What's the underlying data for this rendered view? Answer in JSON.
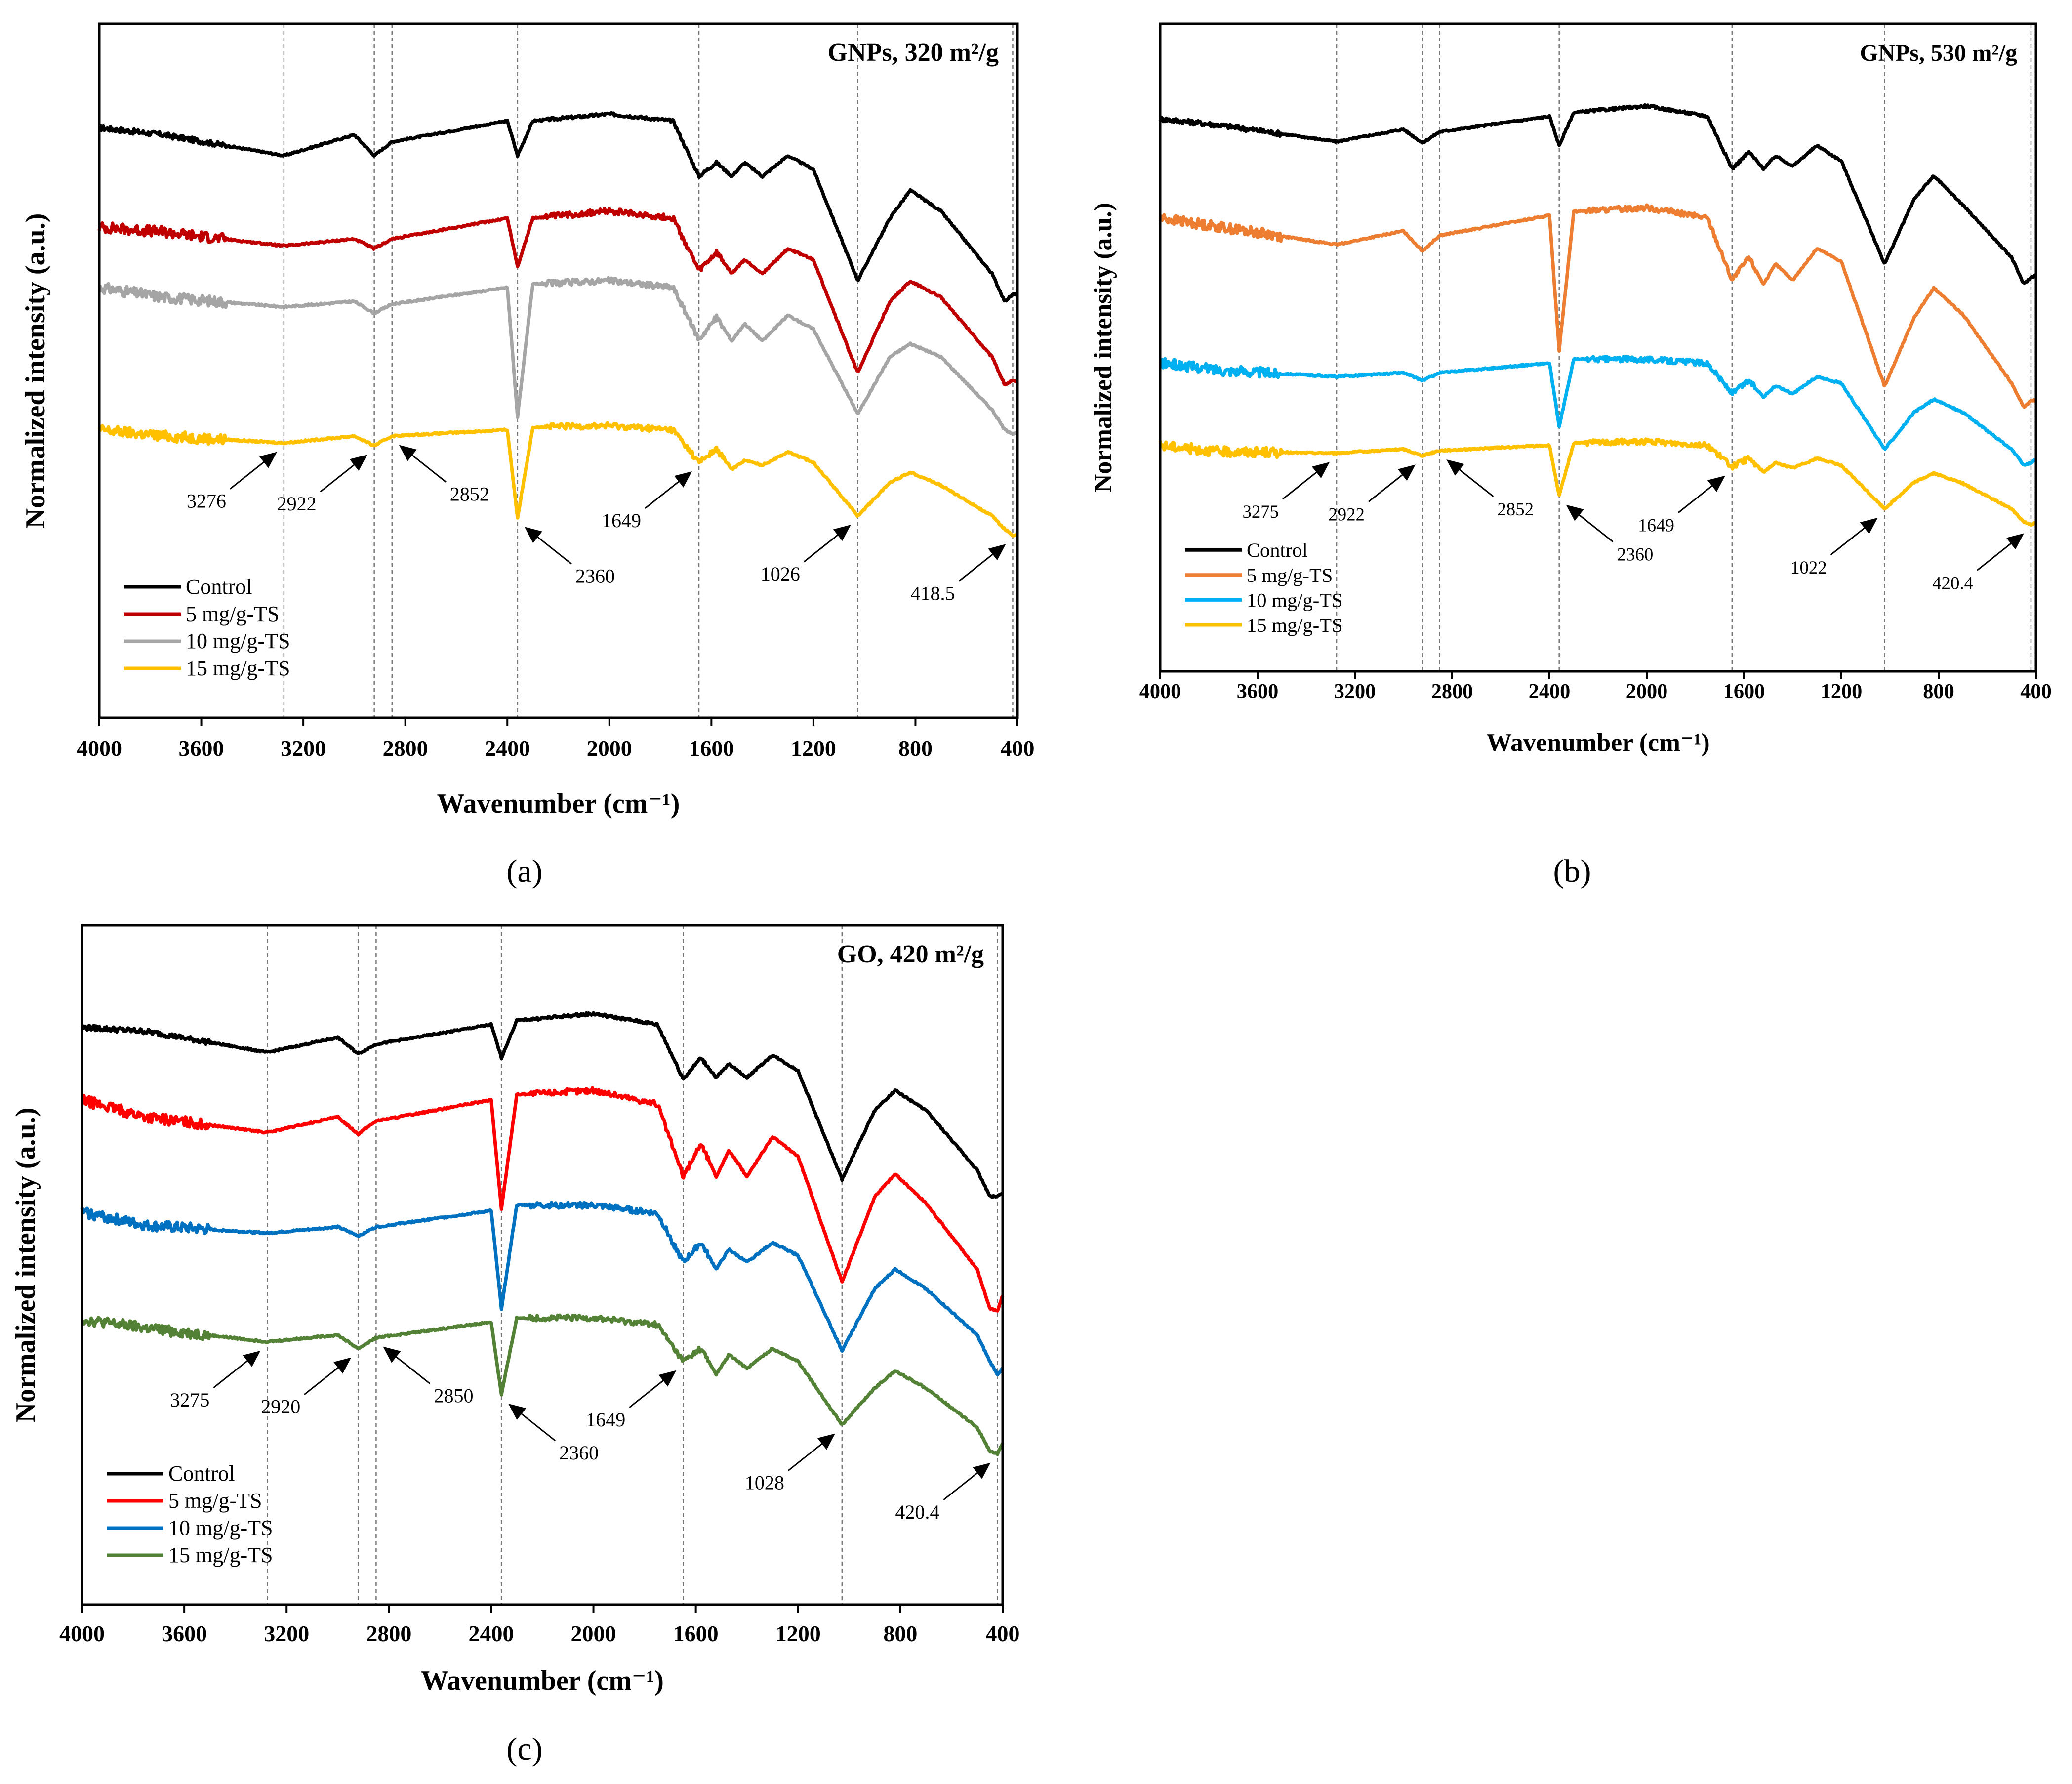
{
  "chart_data": [
    {
      "id": "a",
      "type": "line",
      "panel_label": "(a)",
      "title": "GNPs, 320 m²/g",
      "xlabel": "Wavenumber (cm⁻¹)",
      "ylabel": "Normalized intensity (a.u.)",
      "xlim": [
        4000,
        400
      ],
      "ylim": [
        0,
        100
      ],
      "xticks": [
        4000,
        3600,
        3200,
        2800,
        2400,
        2000,
        1600,
        1200,
        800,
        400
      ],
      "x": [
        4000,
        3750,
        3276,
        3000,
        2922,
        2852,
        2400,
        2360,
        2300,
        2000,
        1750,
        1649,
        1580,
        1520,
        1470,
        1400,
        1300,
        1200,
        1026,
        900,
        820,
        700,
        500,
        450,
        418,
        400
      ],
      "series": [
        {
          "name": "Control",
          "color": "#000000",
          "y": [
            85,
            84,
            81,
            84,
            81,
            83,
            86,
            81,
            86,
            87,
            86,
            78,
            80,
            78,
            80,
            78,
            81,
            79,
            63,
            72,
            76,
            73,
            64,
            60,
            61,
            61
          ]
        },
        {
          "name": "5 mg/g-TS",
          "color": "#C00000",
          "y": [
            70.7,
            70,
            68,
            69,
            67.6,
            69,
            72,
            65,
            72,
            73,
            72,
            64.4,
            67,
            64,
            66,
            64,
            67.6,
            66,
            49.7,
            60,
            62.9,
            60.6,
            52,
            48,
            48.6,
            48.2
          ]
        },
        {
          "name": "10 mg/g-TS",
          "color": "#A5A5A5",
          "y": [
            62,
            60.6,
            59.2,
            60,
            58.3,
            59.6,
            62,
            43.4,
            62.5,
            63,
            62,
            54.5,
            57.7,
            54.3,
            56.8,
            54.3,
            58,
            56,
            43.8,
            52,
            53.9,
            52,
            44.4,
            41.5,
            41,
            41
          ]
        },
        {
          "name": "15 mg/g-TS",
          "color": "#FFC000",
          "y": [
            41.5,
            40.6,
            39.6,
            40.6,
            39.2,
            40.6,
            41.5,
            28.8,
            41.9,
            42.1,
            41.5,
            36.8,
            38.7,
            35.8,
            37.1,
            36.4,
            38.3,
            36.8,
            29.1,
            33.9,
            35.4,
            33.5,
            29.1,
            27.2,
            26.3,
            26.3
          ]
        }
      ],
      "annotations": [
        {
          "text": "3276",
          "wavenumber": 3276
        },
        {
          "text": "2922",
          "wavenumber": 2922
        },
        {
          "text": "2852",
          "wavenumber": 2852
        },
        {
          "text": "2360",
          "wavenumber": 2360
        },
        {
          "text": "1649",
          "wavenumber": 1649
        },
        {
          "text": "1026",
          "wavenumber": 1026
        },
        {
          "text": "418.5",
          "wavenumber": 418.5
        }
      ],
      "legend_position": "bottom-left",
      "grid": false
    },
    {
      "id": "b",
      "type": "line",
      "panel_label": "(b)",
      "title": "GNPs, 530 m²/g",
      "xlabel": "Wavenumber (cm⁻¹)",
      "ylabel": "Normalized intensity (a.u.)",
      "xlim": [
        4000,
        400
      ],
      "ylim": [
        0,
        100
      ],
      "xticks": [
        4000,
        3600,
        3200,
        2800,
        2400,
        2000,
        1600,
        1200,
        800,
        400
      ],
      "x": [
        4000,
        3750,
        3275,
        3000,
        2922,
        2852,
        2400,
        2360,
        2300,
        2000,
        1750,
        1649,
        1580,
        1520,
        1470,
        1400,
        1300,
        1200,
        1022,
        900,
        820,
        700,
        500,
        450,
        420.4,
        400
      ],
      "series": [
        {
          "name": "Control",
          "color": "#000000",
          "y": [
            85.3,
            84.3,
            81.8,
            83.7,
            81.6,
            83.3,
            85.7,
            81.2,
            86.3,
            87.3,
            85.7,
            77.6,
            80.2,
            77.6,
            79.6,
            78,
            81.2,
            78.8,
            62.9,
            73,
            76.5,
            72,
            63.9,
            59.8,
            60.8,
            61.2
          ]
        },
        {
          "name": "5 mg/g-TS",
          "color": "#ED7D31",
          "y": [
            70,
            68.6,
            65.9,
            68,
            64.9,
            67.3,
            70.4,
            49.6,
            71,
            71.6,
            70,
            60.4,
            63.9,
            59.8,
            62.9,
            60.4,
            65.3,
            63.3,
            44,
            54.7,
            59.2,
            55.1,
            44.5,
            40.8,
            41.8,
            41.8
          ]
        },
        {
          "name": "10 mg/g-TS",
          "color": "#00B0F0",
          "y": [
            47.6,
            46.5,
            45.5,
            46.1,
            44.9,
            46.1,
            47.6,
            37.8,
            48.2,
            48.2,
            47.6,
            42.9,
            44.9,
            42.4,
            44.1,
            42.9,
            45.5,
            44.5,
            34.3,
            40,
            42,
            40,
            34.3,
            31.8,
            32.2,
            32.7
          ]
        },
        {
          "name": "15 mg/g-TS",
          "color": "#FFC000",
          "y": [
            34.9,
            33.9,
            33.7,
            34.3,
            33.3,
            34.1,
            34.9,
            27.1,
            35.3,
            35.5,
            34.9,
            31.6,
            32.9,
            30.8,
            32.2,
            31.4,
            32.9,
            31.8,
            25.1,
            29.2,
            30.6,
            29,
            25.1,
            23.1,
            22.7,
            22.9
          ]
        }
      ],
      "annotations": [
        {
          "text": "3275",
          "wavenumber": 3275
        },
        {
          "text": "2922",
          "wavenumber": 2922
        },
        {
          "text": "2852",
          "wavenumber": 2852
        },
        {
          "text": "2360",
          "wavenumber": 2360
        },
        {
          "text": "1649",
          "wavenumber": 1649
        },
        {
          "text": "1022",
          "wavenumber": 1022
        },
        {
          "text": "420.4",
          "wavenumber": 420.4
        }
      ],
      "legend_position": "bottom-left",
      "grid": false
    },
    {
      "id": "c",
      "type": "line",
      "panel_label": "(c)",
      "title": "GO, 420 m²/g",
      "xlabel": "Wavenumber (cm⁻¹)",
      "ylabel": "Normalized intensity (a.u.)",
      "xlim": [
        4000,
        400
      ],
      "ylim": [
        0,
        100
      ],
      "xticks": [
        4000,
        3600,
        3200,
        2800,
        2400,
        2000,
        1600,
        1200,
        800,
        400
      ],
      "x": [
        4000,
        3750,
        3275,
        3000,
        2920,
        2850,
        2400,
        2360,
        2300,
        2000,
        1750,
        1649,
        1580,
        1520,
        1470,
        1400,
        1300,
        1200,
        1028,
        900,
        820,
        700,
        500,
        450,
        420.4,
        400
      ],
      "series": [
        {
          "name": "Control",
          "color": "#000000",
          "y": [
            85,
            84.4,
            81.3,
            83.5,
            81.1,
            82.5,
            85.4,
            80.5,
            86,
            87,
            85.4,
            77.4,
            80.5,
            77.6,
            79.6,
            77.6,
            80.9,
            78.6,
            62.6,
            72.8,
            75.7,
            72.8,
            64,
            60.1,
            60.1,
            60.7
          ]
        },
        {
          "name": "5 mg/g-TS",
          "color": "#FF0000",
          "y": [
            74.3,
            71.8,
            69.5,
            71.8,
            69.3,
            71.2,
            74.3,
            58.2,
            75.1,
            75.7,
            73.7,
            63,
            67.9,
            63,
            66.9,
            63,
            68.9,
            66,
            47.5,
            60.1,
            63.4,
            59.1,
            49.4,
            43.6,
            43.2,
            45.5
          ]
        },
        {
          "name": "10 mg/g-TS",
          "color": "#0070C0",
          "y": [
            57.8,
            55.8,
            54.7,
            55.6,
            54.3,
            55.6,
            58,
            43.6,
            58.8,
            58.8,
            57.6,
            50.4,
            53.3,
            49.4,
            52.3,
            50.4,
            53.3,
            51.4,
            37.4,
            46.5,
            49.4,
            46.5,
            39.7,
            35.8,
            33.9,
            34.8
          ]
        },
        {
          "name": "15 mg/g-TS",
          "color": "#538135",
          "y": [
            42,
            40.7,
            38.7,
            39.7,
            37.7,
            39.3,
            41.6,
            30.9,
            42.2,
            42.2,
            41.2,
            35.8,
            37.7,
            33.9,
            36.8,
            34.8,
            37.7,
            35.8,
            26.5,
            31.9,
            34.4,
            31.9,
            26.1,
            22.6,
            22.2,
            23.7
          ]
        }
      ],
      "annotations": [
        {
          "text": "3275",
          "wavenumber": 3275
        },
        {
          "text": "2920",
          "wavenumber": 2920
        },
        {
          "text": "2850",
          "wavenumber": 2850
        },
        {
          "text": "2360",
          "wavenumber": 2360
        },
        {
          "text": "1649",
          "wavenumber": 1649
        },
        {
          "text": "1028",
          "wavenumber": 1028
        },
        {
          "text": "420.4",
          "wavenumber": 420.4
        }
      ],
      "legend_position": "bottom-left",
      "grid": false
    }
  ]
}
